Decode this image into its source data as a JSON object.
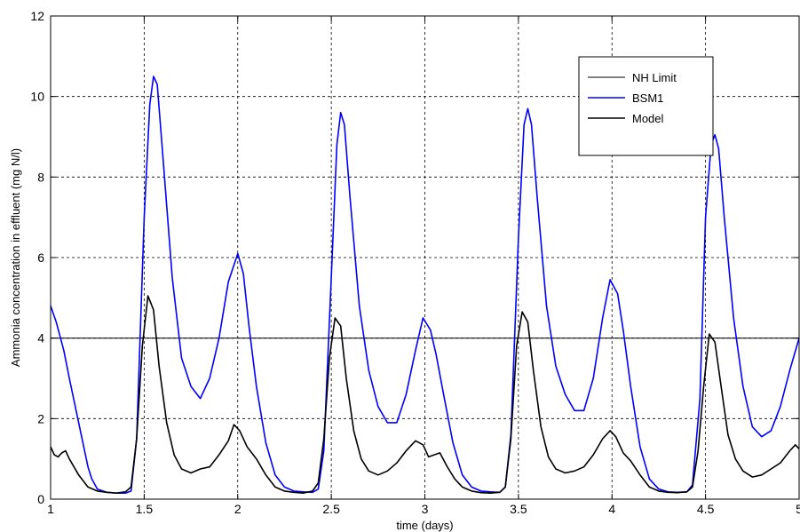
{
  "chart_data": {
    "type": "line",
    "title": "",
    "xlabel": "time (days)",
    "ylabel": "Ammonia concentration in effluent (mg N/l)",
    "xlim": [
      1,
      5
    ],
    "ylim": [
      0,
      12
    ],
    "x_ticks": [
      1,
      1.5,
      2,
      2.5,
      3,
      3.5,
      4,
      4.5,
      5
    ],
    "y_ticks": [
      0,
      2,
      4,
      6,
      8,
      10,
      12
    ],
    "x_tick_labels": [
      "1",
      "1.5",
      "2",
      "2.5",
      "3",
      "3.5",
      "4",
      "4.5",
      "5"
    ],
    "y_tick_labels": [
      "0",
      "2",
      "4",
      "6",
      "8",
      "10",
      "12"
    ],
    "grid": true,
    "legend_position": "top-right",
    "series": [
      {
        "name": "NH Limit",
        "color": "#000000",
        "line_width": 1,
        "x": [
          1,
          5
        ],
        "y": [
          4,
          4
        ]
      },
      {
        "name": "BSM1",
        "color": "#0000ff",
        "line_width": 1.6,
        "x": [
          1.0,
          1.03,
          1.07,
          1.1,
          1.15,
          1.2,
          1.22,
          1.25,
          1.3,
          1.35,
          1.4,
          1.43,
          1.46,
          1.5,
          1.53,
          1.55,
          1.57,
          1.6,
          1.65,
          1.7,
          1.75,
          1.8,
          1.85,
          1.9,
          1.95,
          2.0,
          2.03,
          2.06,
          2.1,
          2.15,
          2.2,
          2.25,
          2.3,
          2.35,
          2.4,
          2.43,
          2.46,
          2.5,
          2.53,
          2.55,
          2.57,
          2.6,
          2.65,
          2.7,
          2.75,
          2.8,
          2.85,
          2.9,
          2.95,
          2.99,
          3.03,
          3.06,
          3.1,
          3.15,
          3.2,
          3.25,
          3.3,
          3.35,
          3.4,
          3.43,
          3.46,
          3.5,
          3.53,
          3.55,
          3.57,
          3.6,
          3.65,
          3.7,
          3.75,
          3.8,
          3.85,
          3.9,
          3.95,
          3.99,
          4.03,
          4.06,
          4.1,
          4.15,
          4.2,
          4.25,
          4.3,
          4.35,
          4.4,
          4.43,
          4.47,
          4.5,
          4.53,
          4.55,
          4.57,
          4.6,
          4.65,
          4.7,
          4.75,
          4.8,
          4.85,
          4.9,
          4.95,
          5.0
        ],
        "y": [
          4.8,
          4.4,
          3.7,
          3.0,
          1.9,
          0.8,
          0.5,
          0.25,
          0.17,
          0.15,
          0.15,
          0.2,
          1.5,
          7.0,
          9.8,
          10.5,
          10.3,
          8.5,
          5.5,
          3.5,
          2.8,
          2.5,
          3.0,
          4.0,
          5.4,
          6.1,
          5.6,
          4.3,
          2.8,
          1.4,
          0.6,
          0.3,
          0.2,
          0.18,
          0.17,
          0.25,
          1.2,
          5.5,
          8.8,
          9.6,
          9.3,
          7.5,
          4.8,
          3.2,
          2.3,
          1.9,
          1.9,
          2.6,
          3.7,
          4.5,
          4.2,
          3.6,
          2.6,
          1.4,
          0.6,
          0.3,
          0.2,
          0.18,
          0.17,
          0.3,
          1.6,
          6.5,
          9.3,
          9.7,
          9.3,
          7.5,
          4.8,
          3.3,
          2.6,
          2.2,
          2.2,
          3.0,
          4.5,
          5.45,
          5.1,
          4.2,
          2.8,
          1.3,
          0.5,
          0.25,
          0.18,
          0.17,
          0.18,
          0.35,
          2.5,
          7.0,
          8.8,
          9.05,
          8.7,
          7.0,
          4.5,
          2.8,
          1.8,
          1.55,
          1.7,
          2.3,
          3.2,
          4.0
        ]
      },
      {
        "name": "Model",
        "color": "#000000",
        "line_width": 1.6,
        "x": [
          1.0,
          1.02,
          1.04,
          1.06,
          1.08,
          1.1,
          1.15,
          1.2,
          1.25,
          1.3,
          1.35,
          1.4,
          1.43,
          1.46,
          1.49,
          1.52,
          1.55,
          1.58,
          1.62,
          1.66,
          1.7,
          1.75,
          1.8,
          1.85,
          1.9,
          1.95,
          1.98,
          2.01,
          2.05,
          2.1,
          2.15,
          2.2,
          2.25,
          2.3,
          2.35,
          2.4,
          2.43,
          2.46,
          2.49,
          2.52,
          2.55,
          2.58,
          2.62,
          2.66,
          2.7,
          2.75,
          2.8,
          2.85,
          2.9,
          2.95,
          2.99,
          3.02,
          3.05,
          3.08,
          3.12,
          3.16,
          3.2,
          3.25,
          3.3,
          3.35,
          3.4,
          3.43,
          3.46,
          3.49,
          3.52,
          3.55,
          3.58,
          3.62,
          3.66,
          3.7,
          3.75,
          3.8,
          3.85,
          3.9,
          3.95,
          3.99,
          4.02,
          4.06,
          4.1,
          4.15,
          4.2,
          4.25,
          4.3,
          4.35,
          4.4,
          4.43,
          4.46,
          4.49,
          4.52,
          4.55,
          4.58,
          4.62,
          4.66,
          4.7,
          4.75,
          4.8,
          4.85,
          4.9,
          4.95,
          4.98,
          5.0
        ],
        "y": [
          1.3,
          1.1,
          1.05,
          1.15,
          1.2,
          1.0,
          0.6,
          0.3,
          0.2,
          0.17,
          0.15,
          0.18,
          0.3,
          1.5,
          3.8,
          5.05,
          4.7,
          3.3,
          1.9,
          1.1,
          0.75,
          0.65,
          0.75,
          0.8,
          1.1,
          1.45,
          1.85,
          1.7,
          1.3,
          1.0,
          0.6,
          0.3,
          0.2,
          0.17,
          0.15,
          0.2,
          0.4,
          1.5,
          3.5,
          4.5,
          4.3,
          3.0,
          1.7,
          1.0,
          0.7,
          0.6,
          0.7,
          0.9,
          1.2,
          1.45,
          1.35,
          1.05,
          1.1,
          1.15,
          0.8,
          0.5,
          0.3,
          0.2,
          0.16,
          0.15,
          0.17,
          0.3,
          1.5,
          3.8,
          4.65,
          4.4,
          3.2,
          1.8,
          1.05,
          0.75,
          0.65,
          0.7,
          0.8,
          1.1,
          1.5,
          1.7,
          1.55,
          1.15,
          0.95,
          0.6,
          0.3,
          0.2,
          0.17,
          0.16,
          0.18,
          0.3,
          1.2,
          2.8,
          4.1,
          3.9,
          2.9,
          1.6,
          1.0,
          0.7,
          0.55,
          0.6,
          0.75,
          0.9,
          1.2,
          1.35,
          1.25
        ]
      }
    ]
  }
}
